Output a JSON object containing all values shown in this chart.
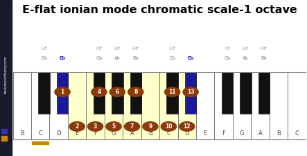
{
  "title": "E-flat ionian mode chromatic scale-1 octave",
  "title_fontsize": 11.5,
  "background_color": "#ffffff",
  "sidebar_color": "#1a1a2e",
  "sidebar_text": "basicmusictheory.com",
  "sidebar_text_color": "#ffffff",
  "legend_orange": "#cc8800",
  "legend_blue": "#3333bb",
  "white_key_color": "#ffffff",
  "white_key_highlight": "#ffffcc",
  "black_key_color": "#111111",
  "black_key_highlight_blue": "#1a1a99",
  "note_circle_color": "#8B3A0A",
  "note_text_color": "#ffffff",
  "orange_underline_color": "#cc8800",
  "white_notes": [
    "B",
    "C",
    "D",
    "E",
    "F",
    "G",
    "A",
    "B",
    "C",
    "D",
    "E",
    "F",
    "G",
    "A",
    "B",
    "C"
  ],
  "white_highlight": [
    false,
    false,
    false,
    true,
    true,
    true,
    true,
    true,
    true,
    true,
    false,
    false,
    false,
    false,
    false,
    false
  ],
  "orange_underline_idx": 1,
  "black_key_centers": [
    1.7,
    2.7,
    4.7,
    5.7,
    6.7,
    8.7,
    9.7,
    11.7,
    12.7,
    13.7
  ],
  "black_key_names_l1": [
    "C#",
    "",
    "F#",
    "G#",
    "A#",
    "C#",
    "",
    "F#",
    "G#",
    "A#"
  ],
  "black_key_names_l2": [
    "Db",
    "Eb",
    "Gb",
    "Ab",
    "Bb",
    "Db",
    "Eb",
    "Gb",
    "Ab",
    "Bb"
  ],
  "black_highlight_blue_idx": [
    1,
    6
  ],
  "circle_notes": [
    {
      "note": "Eb",
      "number": 1,
      "type": "black",
      "black_idx": 1
    },
    {
      "note": "E",
      "number": 2,
      "type": "white",
      "white_idx": 3
    },
    {
      "note": "F",
      "number": 3,
      "type": "white",
      "white_idx": 4
    },
    {
      "note": "Gb",
      "number": 4,
      "type": "black",
      "black_idx": 2
    },
    {
      "note": "G",
      "number": 5,
      "type": "white",
      "white_idx": 5
    },
    {
      "note": "Ab",
      "number": 6,
      "type": "black",
      "black_idx": 3
    },
    {
      "note": "A",
      "number": 7,
      "type": "white",
      "white_idx": 6
    },
    {
      "note": "Bb",
      "number": 8,
      "type": "black",
      "black_idx": 4
    },
    {
      "note": "B",
      "number": 9,
      "type": "white",
      "white_idx": 7
    },
    {
      "note": "C",
      "number": 10,
      "type": "white",
      "white_idx": 8
    },
    {
      "note": "Db",
      "number": 11,
      "type": "black",
      "black_idx": 5
    },
    {
      "note": "D",
      "number": 12,
      "type": "white",
      "white_idx": 9
    },
    {
      "note": "Eb",
      "number": 13,
      "type": "black",
      "black_idx": 6
    }
  ]
}
